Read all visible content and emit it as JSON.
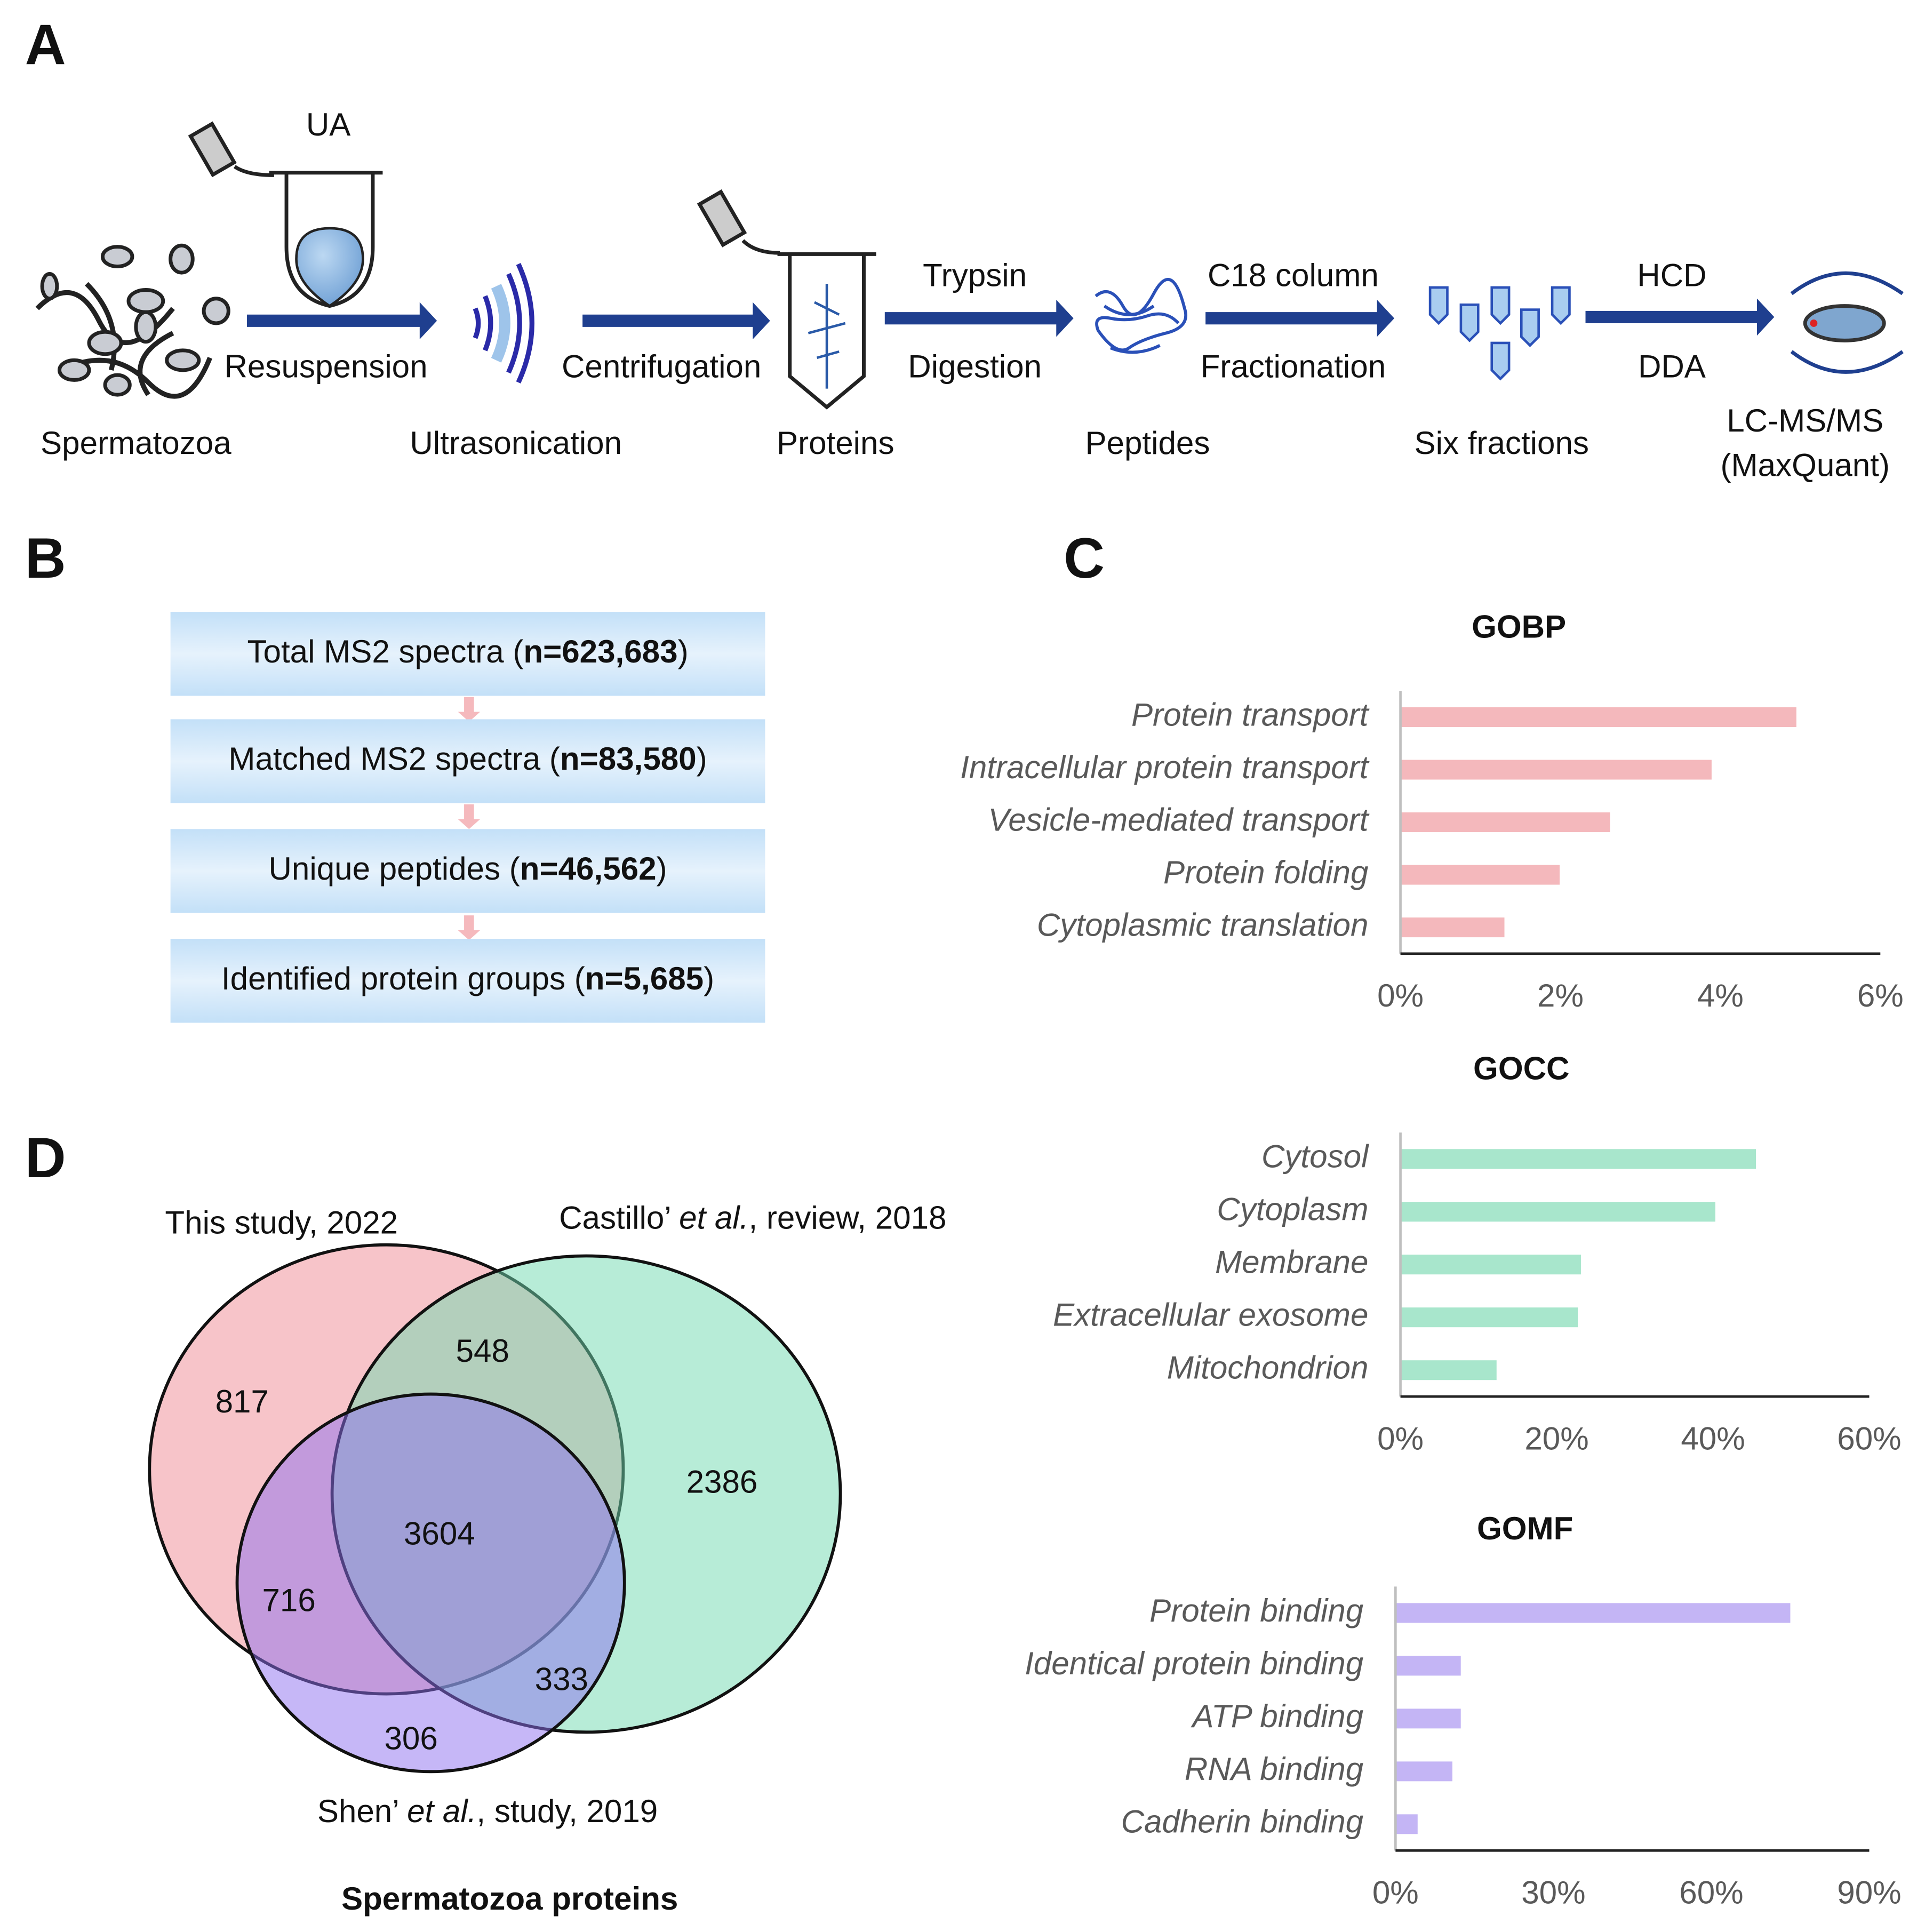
{
  "panel_letters": [
    "A",
    "B",
    "C",
    "D"
  ],
  "panel_a": {
    "steps": [
      "Spermatozoa",
      "Ultrasonication",
      "Proteins",
      "Peptides",
      "Six fractions",
      "LC-MS/MS",
      "(MaxQuant)"
    ],
    "reagent": "UA",
    "arrows": [
      {
        "above": null,
        "below": "Resuspension"
      },
      {
        "above": null,
        "below": "Centrifugation"
      },
      {
        "above": "Trypsin",
        "below": "Digestion"
      },
      {
        "above": "C18 column",
        "below": "Fractionation"
      },
      {
        "above": "HCD",
        "below": "DDA"
      }
    ]
  },
  "panel_b": {
    "boxes": [
      {
        "prefix": "Total MS2 spectra (",
        "bold": "n=623,683",
        "suffix": ")"
      },
      {
        "prefix": "Matched MS2 spectra (",
        "bold": "n=83,580",
        "suffix": ")"
      },
      {
        "prefix": "Unique peptides (",
        "bold": "n=46,562",
        "suffix": ")"
      },
      {
        "prefix": "Identified protein groups (",
        "bold": "n=5,685",
        "suffix": ")"
      }
    ]
  },
  "panel_d": {
    "title": "Spermatozoa proteins",
    "sets": [
      {
        "parts": [
          "This study, 2022"
        ],
        "color": "#f08a93"
      },
      {
        "parts": [
          "Castillo’ ",
          "et al.",
          ", review, 2018"
        ],
        "color": "#6fd9b0"
      },
      {
        "parts": [
          "Shen’ ",
          "et al.",
          ", study, 2019"
        ],
        "color": "#8d6ff0"
      }
    ],
    "regions": [
      "817",
      "548",
      "2386",
      "3604",
      "716",
      "333",
      "306"
    ]
  },
  "chart_data": [
    {
      "type": "bar",
      "orientation": "horizontal",
      "title": "GOBP",
      "categories": [
        "Protein transport",
        "Intracellular protein transport",
        "Vesicle-mediated transport",
        "Protein folding",
        "Cytoplasmic translation"
      ],
      "values": [
        4.95,
        3.89,
        2.62,
        1.99,
        1.3
      ],
      "color": "#f4b8bc",
      "xlim": [
        0,
        6
      ],
      "xticks": [
        {
          "value": 0,
          "label": "0%"
        },
        {
          "value": 2,
          "label": "2%"
        },
        {
          "value": 4,
          "label": "4%"
        },
        {
          "value": 6,
          "label": "6%"
        }
      ]
    },
    {
      "type": "bar",
      "orientation": "horizontal",
      "title": "GOCC",
      "categories": [
        "Cytosol",
        "Cytoplasm",
        "Membrane",
        "Extracellular exosome",
        "Mitochondrion"
      ],
      "values": [
        45.5,
        40.3,
        23.1,
        22.7,
        12.3
      ],
      "color": "#a8e6cc",
      "xlim": [
        0,
        60
      ],
      "xticks": [
        {
          "value": 0,
          "label": "0%"
        },
        {
          "value": 20,
          "label": "20%"
        },
        {
          "value": 40,
          "label": "40%"
        },
        {
          "value": 60,
          "label": "60%"
        }
      ]
    },
    {
      "type": "bar",
      "orientation": "horizontal",
      "title": "GOMF",
      "categories": [
        "Protein binding",
        "Identical protein binding",
        "ATP binding",
        "RNA binding",
        "Cadherin binding"
      ],
      "values": [
        75,
        12.4,
        12.4,
        10.8,
        4.2
      ],
      "color": "#c4b5f5",
      "xlim": [
        0,
        90
      ],
      "xticks": [
        {
          "value": 0,
          "label": "0%"
        },
        {
          "value": 30,
          "label": "30%"
        },
        {
          "value": 60,
          "label": "60%"
        },
        {
          "value": 90,
          "label": "90%"
        }
      ]
    }
  ]
}
